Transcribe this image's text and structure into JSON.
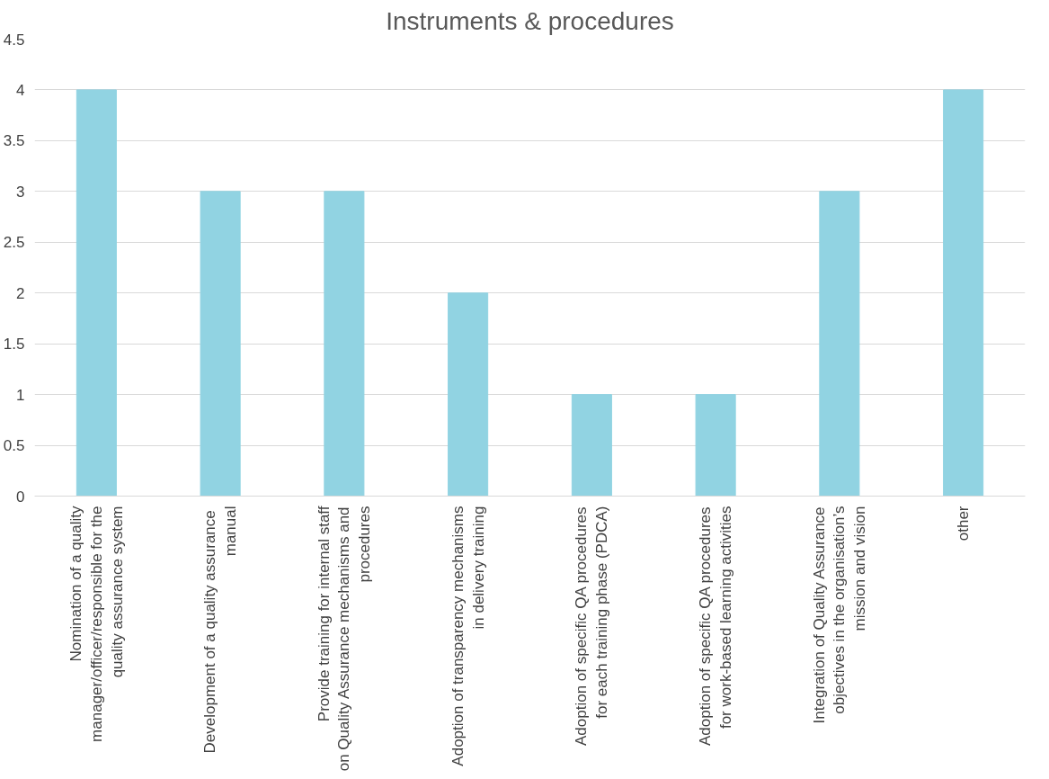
{
  "chart_data": {
    "type": "bar",
    "title": "Instruments & procedures",
    "categories": [
      "Nomination of a quality manager/officer/responsible for the quality assurance system",
      "Development of  a quality assurance manual",
      "Provide training for internal staff on Quality Assurance mechanisms and procedures",
      "Adoption of transparency mechanisms in delivery training",
      "Adoption of specific QA procedures for each training phase (PDCA)",
      "Adoption of specific QA procedures for work-based learning activities",
      "Integration of Quality Assurance objectives in the organisation’s mission and vision",
      "other"
    ],
    "values": [
      4,
      3,
      3,
      2,
      1,
      1,
      3,
      4
    ],
    "color": "#91d3e2",
    "ylim": [
      0,
      4.5
    ],
    "yticks": [
      0,
      0.5,
      1,
      1.5,
      2,
      2.5,
      3,
      3.5,
      4,
      4.5
    ],
    "grid": "y"
  }
}
